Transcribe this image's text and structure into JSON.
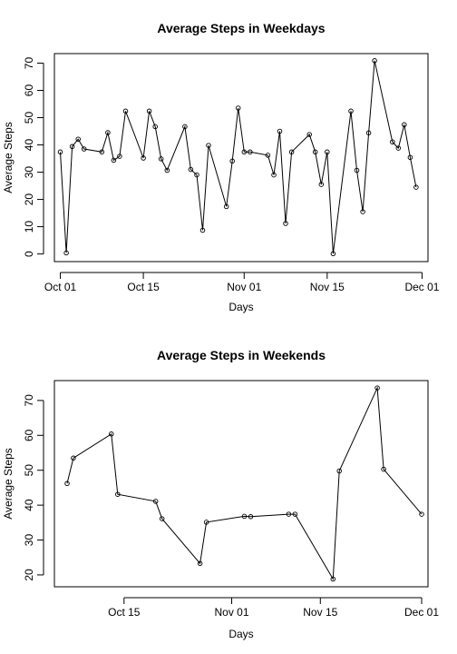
{
  "chart_data": [
    {
      "type": "line",
      "title": "Average Steps in Weekdays",
      "xlabel": "Days",
      "ylabel": "Average Steps",
      "xlim": [
        "2012-09-30",
        "2012-12-02"
      ],
      "ylim": [
        -2.8,
        73.5
      ],
      "xticks": [
        {
          "date": "2012-10-01",
          "label": "Oct 01"
        },
        {
          "date": "2012-10-15",
          "label": "Oct 15"
        },
        {
          "date": "2012-11-01",
          "label": "Nov 01"
        },
        {
          "date": "2012-11-15",
          "label": "Nov 15"
        },
        {
          "date": "2012-12-01",
          "label": "Dec 01"
        }
      ],
      "yticks": [
        0,
        10,
        20,
        30,
        40,
        50,
        60,
        70
      ],
      "series": [
        {
          "x": [
            "2012-10-01",
            "2012-10-02",
            "2012-10-03",
            "2012-10-04",
            "2012-10-05",
            "2012-10-08",
            "2012-10-09",
            "2012-10-10",
            "2012-10-11",
            "2012-10-12",
            "2012-10-15",
            "2012-10-16",
            "2012-10-17",
            "2012-10-18",
            "2012-10-19",
            "2012-10-22",
            "2012-10-23",
            "2012-10-24",
            "2012-10-25",
            "2012-10-26",
            "2012-10-29",
            "2012-10-30",
            "2012-10-31",
            "2012-11-01",
            "2012-11-02",
            "2012-11-05",
            "2012-11-06",
            "2012-11-07",
            "2012-11-08",
            "2012-11-09",
            "2012-11-12",
            "2012-11-13",
            "2012-11-14",
            "2012-11-15",
            "2012-11-16",
            "2012-11-19",
            "2012-11-20",
            "2012-11-21",
            "2012-11-22",
            "2012-11-23",
            "2012-11-26",
            "2012-11-27",
            "2012-11-28",
            "2012-11-29",
            "2012-11-30"
          ],
          "y": [
            37.4,
            0.4,
            39.4,
            42.1,
            38.5,
            37.4,
            44.5,
            34.4,
            35.8,
            52.4,
            35.2,
            52.4,
            46.7,
            34.9,
            30.7,
            46.7,
            31.0,
            29.0,
            8.7,
            39.8,
            17.4,
            34.1,
            53.5,
            37.4,
            37.4,
            36.2,
            29.0,
            45.0,
            11.2,
            37.4,
            43.8,
            37.4,
            25.5,
            37.4,
            0.1,
            52.4,
            30.7,
            15.5,
            44.4,
            70.9,
            41.1,
            38.8,
            47.4,
            35.4,
            24.5
          ]
        }
      ]
    },
    {
      "type": "line",
      "title": "Average Steps in Weekends",
      "xlabel": "Days",
      "ylabel": "Average Steps",
      "xlim": [
        "2012-10-04",
        "2012-12-02"
      ],
      "ylim": [
        16.6,
        75.7
      ],
      "xticks": [
        {
          "date": "2012-10-15",
          "label": "Oct 15"
        },
        {
          "date": "2012-11-01",
          "label": "Nov 01"
        },
        {
          "date": "2012-11-15",
          "label": "Nov 15"
        },
        {
          "date": "2012-12-01",
          "label": "Dec 01"
        }
      ],
      "yticks": [
        20,
        30,
        40,
        50,
        60,
        70
      ],
      "series": [
        {
          "x": [
            "2012-10-06",
            "2012-10-07",
            "2012-10-13",
            "2012-10-14",
            "2012-10-20",
            "2012-10-21",
            "2012-10-27",
            "2012-10-28",
            "2012-11-03",
            "2012-11-04",
            "2012-11-10",
            "2012-11-11",
            "2012-11-17",
            "2012-11-18",
            "2012-11-24",
            "2012-11-25",
            "2012-12-01"
          ],
          "y": [
            46.2,
            53.5,
            60.4,
            43.1,
            41.1,
            36.1,
            23.3,
            35.1,
            36.8,
            36.7,
            37.4,
            37.4,
            18.8,
            49.8,
            73.6,
            50.3,
            37.4
          ]
        }
      ]
    }
  ]
}
